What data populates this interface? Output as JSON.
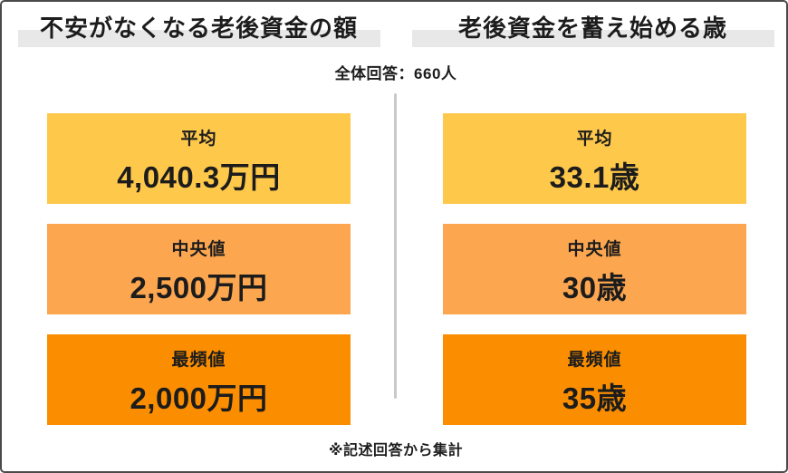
{
  "header": {
    "respondents_note": "全体回答：660人"
  },
  "columns": [
    {
      "title": "不安がなくなる老後資金の額",
      "stats": [
        {
          "label": "平均",
          "value": "4,040.3万円"
        },
        {
          "label": "中央値",
          "value": "2,500万円"
        },
        {
          "label": "最頻値",
          "value": "2,000万円"
        }
      ]
    },
    {
      "title": "老後資金を蓄え始める歳",
      "stats": [
        {
          "label": "平均",
          "value": "33.1歳"
        },
        {
          "label": "中央値",
          "value": "30歳"
        },
        {
          "label": "最頻値",
          "value": "35歳"
        }
      ]
    }
  ],
  "footer": {
    "note": "※記述回答から集計"
  },
  "colors": {
    "average_box": "#FEC84B",
    "median_box": "#FCA64F",
    "mode_box": "#FB8D00",
    "title_highlight": "#E8E8E8",
    "frame_border": "#4A4A4A",
    "divider": "#C9C9C9",
    "text": "#1C1C1C"
  },
  "chart_data": {
    "type": "table",
    "title": "全体回答：660人",
    "note": "※記述回答から集計",
    "tables": [
      {
        "title": "不安がなくなる老後資金の額",
        "unit": "万円",
        "rows": [
          [
            "平均",
            "4,040.3万円"
          ],
          [
            "中央値",
            "2,500万円"
          ],
          [
            "最頻値",
            "2,000万円"
          ]
        ],
        "numeric_values": {
          "mean": 4040.3,
          "median": 2500,
          "mode": 2000
        }
      },
      {
        "title": "老後資金を蓄え始める歳",
        "unit": "歳",
        "rows": [
          [
            "平均",
            "33.1歳"
          ],
          [
            "中央値",
            "30歳"
          ],
          [
            "最頻値",
            "35歳"
          ]
        ],
        "numeric_values": {
          "mean": 33.1,
          "median": 30,
          "mode": 35
        }
      }
    ]
  }
}
